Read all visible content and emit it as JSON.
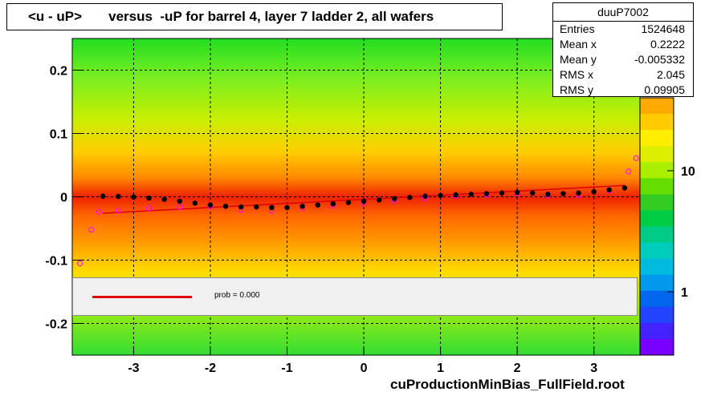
{
  "title": "<u - uP>       versus  -uP for barrel 4, layer 7 ladder 2, all wafers",
  "stats": {
    "name": "duuP7002",
    "rows": [
      {
        "label": "Entries",
        "value": "1524648"
      },
      {
        "label": "Mean x",
        "value": "0.2222"
      },
      {
        "label": "Mean y",
        "value": "-0.005332"
      },
      {
        "label": "RMS x",
        "value": "2.045"
      },
      {
        "label": "RMS y",
        "value": "0.09905"
      }
    ]
  },
  "legend": {
    "text": "prob = 0.000"
  },
  "footer": "cuProductionMinBias_FullField.root",
  "colors": {
    "fit_line": "#e00000",
    "profile_points": "#000000",
    "mean_points": "#ff00ff"
  },
  "chart_data": {
    "type": "heatmap",
    "xlim": [
      -3.8,
      3.6
    ],
    "ylim": [
      -0.25,
      0.25
    ],
    "grid": true,
    "x_ticks": [
      -3,
      -2,
      -1,
      0,
      1,
      2,
      3
    ],
    "x_tick_labels": [
      "-3",
      "-2",
      "-1",
      "0",
      "1",
      "2",
      "3"
    ],
    "y_ticks": [
      -0.2,
      -0.1,
      0,
      0.1,
      0.2
    ],
    "y_tick_labels": [
      "-0.2",
      "-0.1",
      "0",
      "0.1",
      "0.2"
    ],
    "z_scale": "log",
    "z_ticks": [
      1,
      10
    ],
    "z_tick_labels": [
      "1",
      "10"
    ],
    "profile": {
      "x": [
        -3.4,
        -3.2,
        -3.0,
        -2.8,
        -2.6,
        -2.4,
        -2.2,
        -2.0,
        -1.8,
        -1.6,
        -1.4,
        -1.2,
        -1.0,
        -0.8,
        -0.6,
        -0.4,
        -0.2,
        0.0,
        0.2,
        0.4,
        0.6,
        0.8,
        1.0,
        1.2,
        1.4,
        1.6,
        1.8,
        2.0,
        2.2,
        2.4,
        2.6,
        2.8,
        3.0,
        3.2,
        3.4
      ],
      "y": [
        0.001,
        0.0005,
        -0.0005,
        -0.002,
        -0.004,
        -0.007,
        -0.01,
        -0.013,
        -0.015,
        -0.016,
        -0.016,
        -0.017,
        -0.017,
        -0.015,
        -0.013,
        -0.011,
        -0.009,
        -0.007,
        -0.005,
        -0.003,
        -0.001,
        0.001,
        0.002,
        0.003,
        0.004,
        0.005,
        0.006,
        0.007,
        0.006,
        0.004,
        0.005,
        0.006,
        0.008,
        0.011,
        0.014
      ]
    },
    "mean_points": {
      "x": [
        -3.7,
        -3.55,
        -3.45,
        -3.2,
        -2.8,
        -2.4,
        -2.0,
        -1.6,
        -1.2,
        -0.8,
        -0.4,
        0.0,
        0.4,
        0.8,
        1.2,
        1.6,
        2.0,
        2.4,
        2.8,
        3.2,
        3.45,
        3.55
      ],
      "y": [
        -0.105,
        -0.052,
        -0.024,
        -0.022,
        -0.018,
        -0.016,
        -0.015,
        -0.021,
        -0.022,
        -0.018,
        -0.014,
        -0.01,
        -0.006,
        -0.002,
        0.001,
        0.003,
        0.005,
        0.002,
        0.003,
        0.01,
        0.04,
        0.061
      ]
    },
    "fit": {
      "x": [
        -3.4,
        3.4
      ],
      "y": [
        -0.026,
        0.018
      ]
    }
  }
}
